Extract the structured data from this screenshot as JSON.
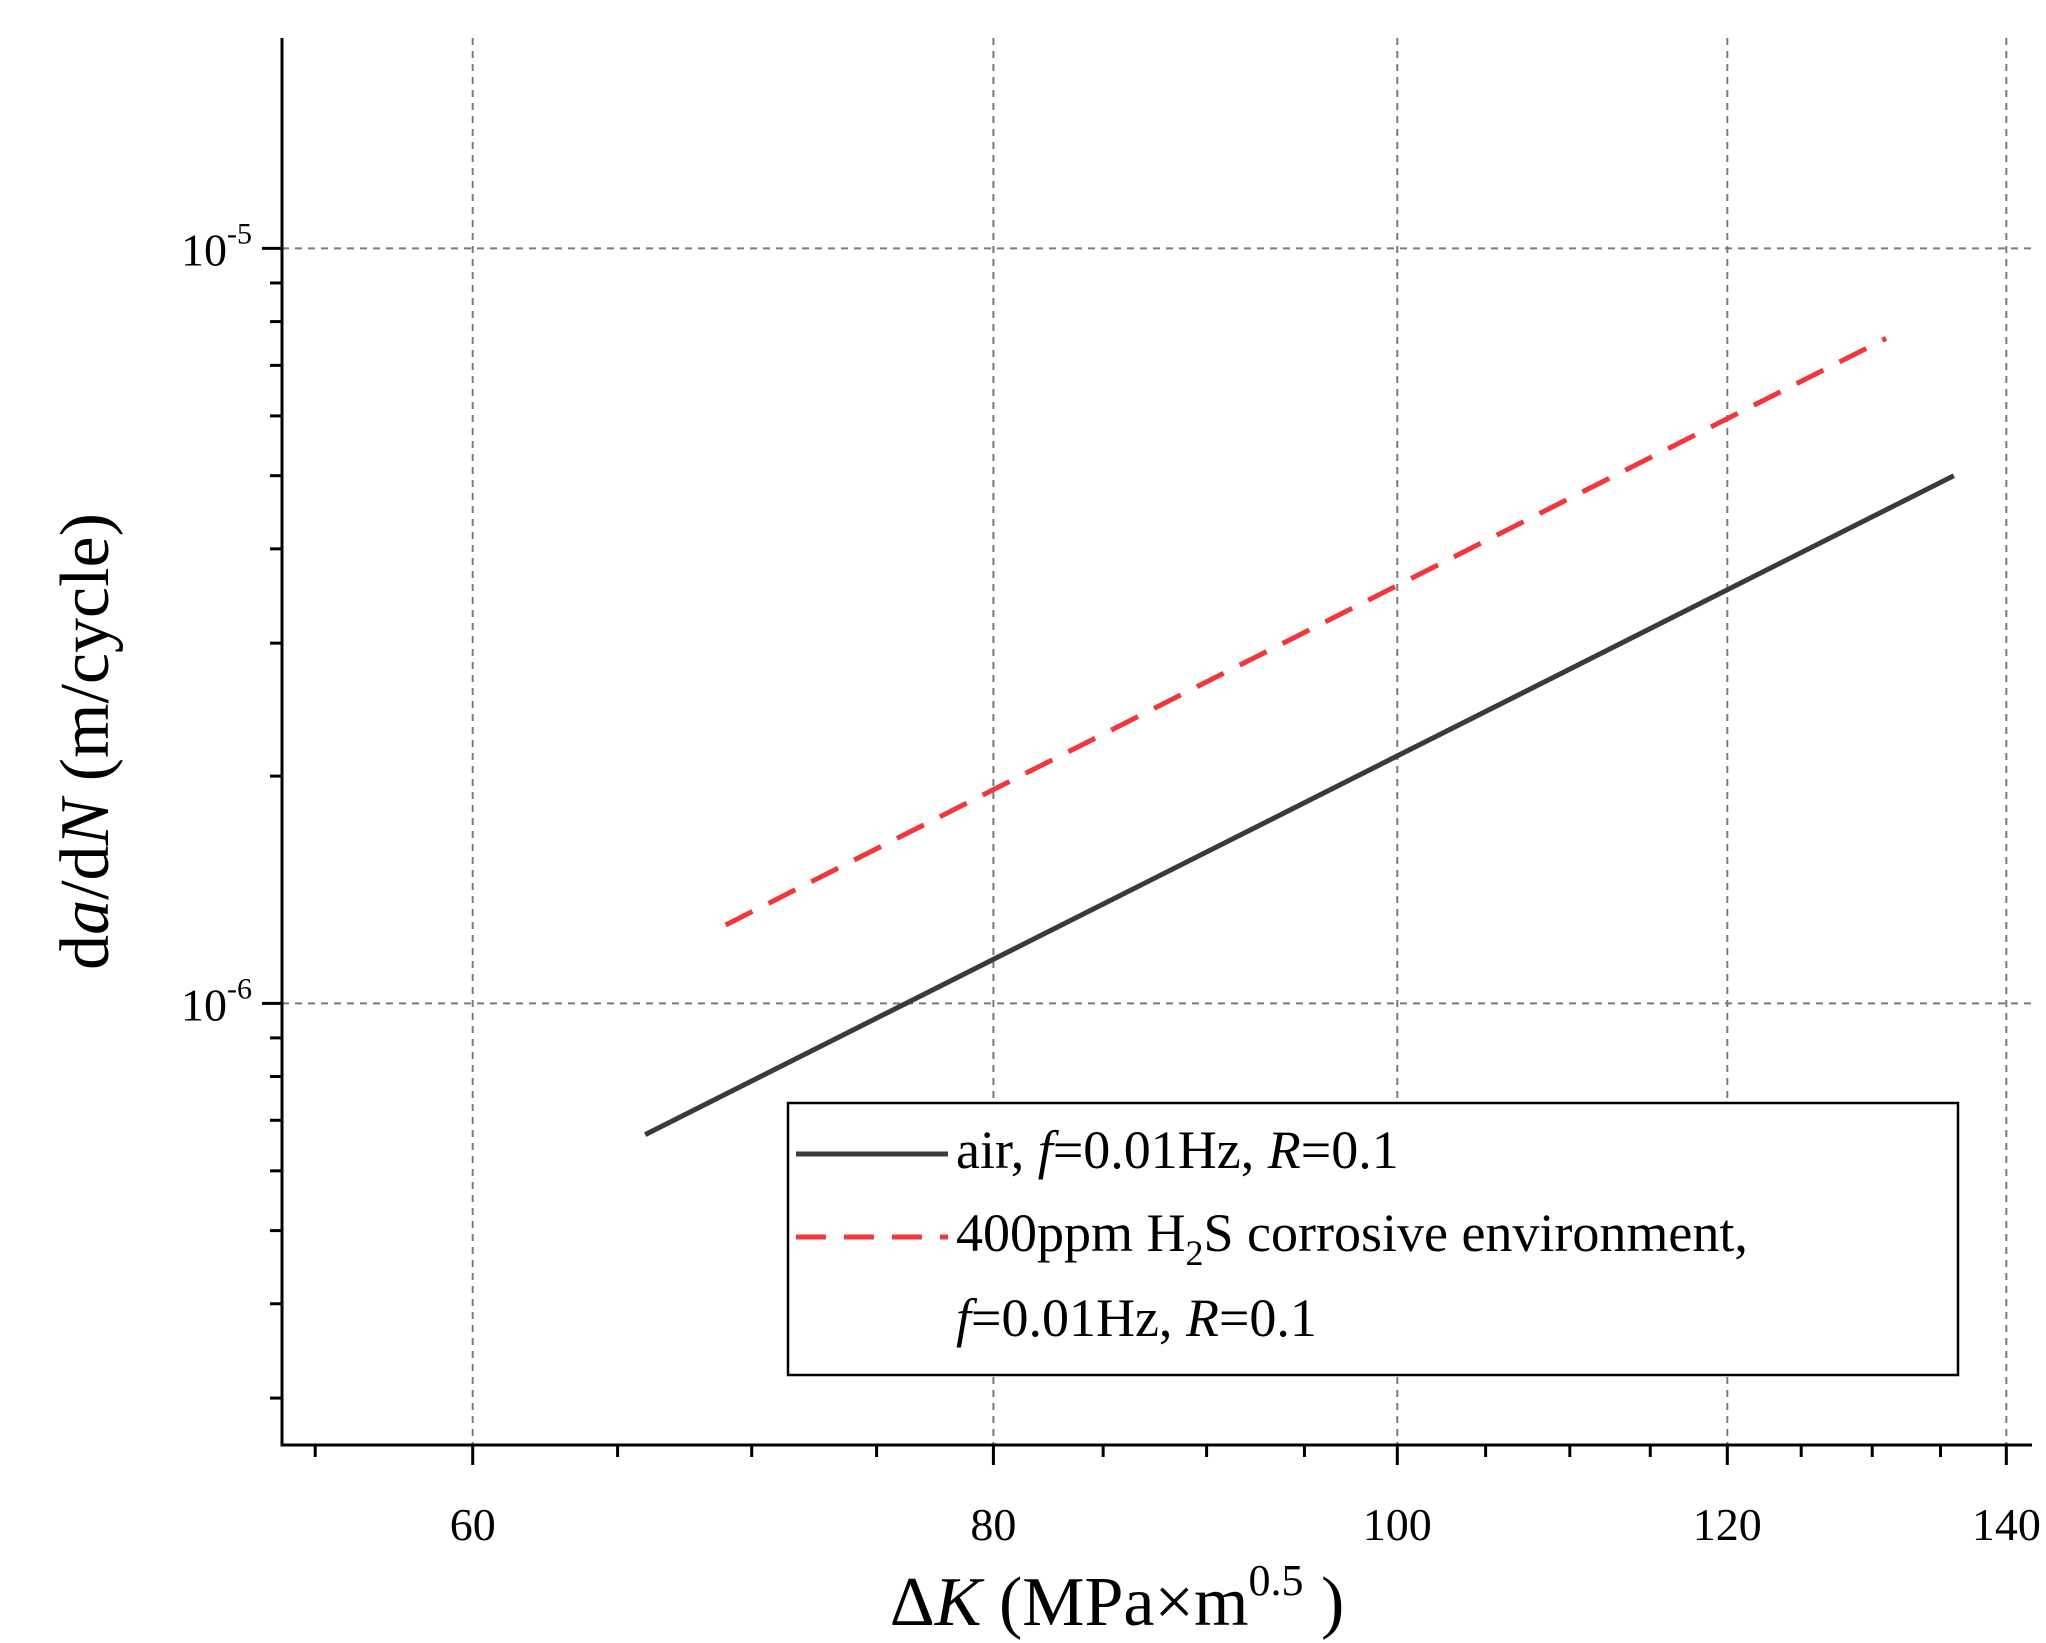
{
  "chart_data": {
    "type": "line",
    "xlabel": {
      "prefix": "Δ",
      "var": "K",
      "units": " (MPa×m",
      "sup": "0.5",
      "close": " )"
    },
    "ylabel": {
      "d1": "d",
      "var1": "a",
      "slash": "/d",
      "var2": "N",
      "units": " (m/cycle)"
    },
    "x_scale": "log",
    "y_scale": "log",
    "xlim": [
      54,
      142
    ],
    "ylim": [
      2.6e-07,
      1.9e-05
    ],
    "x_ticks": [
      60,
      80,
      100,
      120,
      140
    ],
    "x_tick_labels": [
      "60",
      "80",
      "100",
      "120",
      "140"
    ],
    "y_ticks": [
      1e-06,
      1e-05
    ],
    "y_tick_labels": [
      {
        "base": "10",
        "exp": "-6"
      },
      {
        "base": "10",
        "exp": "-5"
      }
    ],
    "grid": true,
    "legend_position": "bottom-right",
    "series": [
      {
        "style": "solid",
        "color": "#3a3a3a",
        "x": [
          66,
          136
        ],
        "y": [
          6.7e-07,
          5e-06
        ],
        "legend_parts": [
          {
            "t": "air, ",
            "i": false
          },
          {
            "t": "f",
            "i": true
          },
          {
            "t": "=0.01Hz, ",
            "i": false
          },
          {
            "t": "R",
            "i": true
          },
          {
            "t": "=0.1",
            "i": false
          }
        ]
      },
      {
        "style": "dashed",
        "color": "#f0373c",
        "x": [
          69,
          131
        ],
        "y": [
          1.27e-06,
          7.6e-06
        ],
        "legend_parts": [
          {
            "t": "400ppm H",
            "i": false
          },
          {
            "t": "2",
            "i": false,
            "sub": true
          },
          {
            "t": "S corrosive environment,",
            "i": false
          }
        ],
        "legend_parts_2": [
          {
            "t": "f",
            "i": true
          },
          {
            "t": "=0.01Hz, ",
            "i": false
          },
          {
            "t": "R",
            "i": true
          },
          {
            "t": "=0.1",
            "i": false
          }
        ]
      }
    ]
  }
}
